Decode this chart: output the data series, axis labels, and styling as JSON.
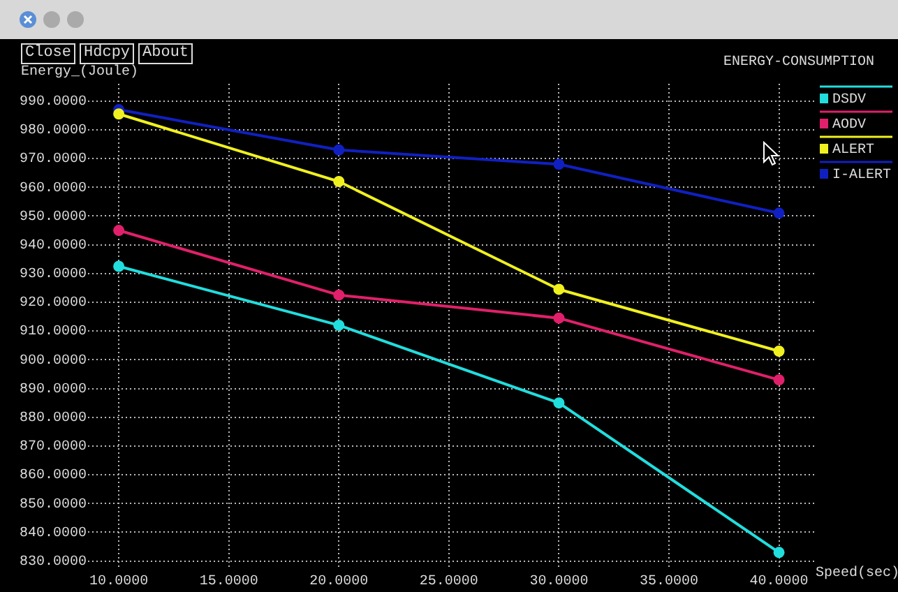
{
  "chart_data": {
    "type": "line",
    "title": "ENERGY-CONSUMPTION",
    "xlabel": "Speed(sec)",
    "ylabel": "Energy_(Joule)",
    "annotations": [
      "Close",
      "Hdcpy",
      "About"
    ],
    "x": [
      10,
      20,
      30,
      40
    ],
    "series": [
      {
        "name": "DSDV",
        "color": "#22dddd",
        "values": [
          932.5,
          912,
          885,
          833
        ]
      },
      {
        "name": "AODV",
        "color": "#e0206a",
        "values": [
          945,
          922.5,
          914.5,
          893
        ]
      },
      {
        "name": "ALERT",
        "color": "#f0f020",
        "values": [
          985.5,
          962,
          924.5,
          903
        ]
      },
      {
        "name": "I-ALERT",
        "color": "#1020c0",
        "values": [
          987,
          973,
          968,
          951
        ]
      }
    ],
    "xlim": [
      8.6,
      41.6
    ],
    "xticks": [
      {
        "value": 10,
        "label": "10.0000"
      },
      {
        "value": 15,
        "label": "15.0000"
      },
      {
        "value": 20,
        "label": "20.0000"
      },
      {
        "value": 25,
        "label": "25.0000"
      },
      {
        "value": 30,
        "label": "30.0000"
      },
      {
        "value": 35,
        "label": "35.0000"
      },
      {
        "value": 40,
        "label": "40.0000"
      }
    ],
    "ylim": [
      827,
      996
    ],
    "yticks": [
      {
        "value": 830,
        "label": "830.0000"
      },
      {
        "value": 840,
        "label": "840.0000"
      },
      {
        "value": 850,
        "label": "850.0000"
      },
      {
        "value": 860,
        "label": "860.0000"
      },
      {
        "value": 870,
        "label": "870.0000"
      },
      {
        "value": 880,
        "label": "880.0000"
      },
      {
        "value": 890,
        "label": "890.0000"
      },
      {
        "value": 900,
        "label": "900.0000"
      },
      {
        "value": 910,
        "label": "910.0000"
      },
      {
        "value": 920,
        "label": "920.0000"
      },
      {
        "value": 930,
        "label": "930.0000"
      },
      {
        "value": 940,
        "label": "940.0000"
      },
      {
        "value": 950,
        "label": "950.0000"
      },
      {
        "value": 960,
        "label": "960.0000"
      },
      {
        "value": 970,
        "label": "970.0000"
      },
      {
        "value": 980,
        "label": "980.0000"
      },
      {
        "value": 990,
        "label": "990.0000"
      }
    ],
    "grid": true,
    "legend": "top right",
    "marker": "circle",
    "line_style": "solid"
  }
}
